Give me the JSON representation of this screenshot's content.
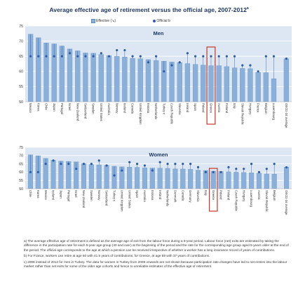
{
  "title": "Average effective age of retirement versus the official age, 2007-2012",
  "title_sup": "a",
  "legend": {
    "effective": "Effective (↘)",
    "official": "Official b"
  },
  "colors": {
    "bar": "#8ab0da",
    "bar_edge": "#5d8cc0",
    "dot": "#2d5ca8",
    "highlight": "#c0392b",
    "panel_bg": "#dde7f3"
  },
  "chart_data": [
    {
      "type": "bar",
      "title": "Men",
      "ylim": [
        50,
        75
      ],
      "yticks": [
        50,
        55,
        60,
        65,
        70,
        75
      ],
      "highlight": "Greece",
      "categories": [
        "Mexico",
        "Korea",
        "Chile",
        "Japan",
        "Portugal",
        "Israel",
        "New Zealand",
        "Switzerland",
        "Sweden",
        "United States",
        "Australia",
        "Norway",
        "Iceland",
        "Canada",
        "United Kingdom",
        "Estonia",
        "Netherlands",
        "Turkey c",
        "Czech Republic",
        "Slovenia",
        "Ireland",
        "Spain",
        "Poland",
        "Greece",
        "Austria",
        "Finland",
        "Italy",
        "Slovak Republic",
        "Hungary",
        "France",
        "Belgium",
        "Luxembourg",
        "OECD-34 average"
      ],
      "series": [
        {
          "name": "Effective",
          "values": [
            72.3,
            71.1,
            69.4,
            69.1,
            68.4,
            67.4,
            66.8,
            66.1,
            66.0,
            65.6,
            65.2,
            65.0,
            64.8,
            64.3,
            64.2,
            63.9,
            63.6,
            63.4,
            63.1,
            62.9,
            62.6,
            62.3,
            62.1,
            61.9,
            61.9,
            61.6,
            61.2,
            61.0,
            60.9,
            59.7,
            59.6,
            57.6,
            64.2
          ]
        },
        {
          "name": "Official",
          "values": [
            65,
            65,
            65,
            65,
            65,
            66,
            65,
            65,
            65,
            66,
            65,
            67,
            67,
            65,
            65,
            63,
            65,
            60,
            62,
            63,
            66,
            65,
            65,
            65,
            65,
            65,
            65,
            62,
            62,
            60,
            65,
            65,
            64.2
          ]
        }
      ]
    },
    {
      "type": "bar",
      "title": "Women",
      "ylim": [
        50,
        75
      ],
      "yticks": [
        50,
        55,
        60,
        65,
        70,
        75
      ],
      "highlight": "Greece",
      "categories": [
        "Chile",
        "Korea",
        "Mexico",
        "Iceland",
        "Japan",
        "Portugal",
        "Israel",
        "New Zealand",
        "Sweden",
        "Norway",
        "Switzerland",
        "Turkey c",
        "United Kingdom",
        "United States",
        "Spain",
        "Australia",
        "Estonia",
        "Ireland",
        "Netherlands",
        "Denmark",
        "Canada",
        "Germany",
        "Slovenia",
        "Italy",
        "Greece",
        "Poland",
        "Finland",
        "Czech Republic",
        "Hungary",
        "Luxembourg",
        "Austria",
        "Slovak Republic",
        "Belgium",
        "OECD-34 average"
      ],
      "series": [
        {
          "name": "Effective",
          "values": [
            70.5,
            69.9,
            68.3,
            67.2,
            66.7,
            66.5,
            66.2,
            65.1,
            64.6,
            64.4,
            64.1,
            63.6,
            63.2,
            63.0,
            62.9,
            62.6,
            62.5,
            62.4,
            62.3,
            62.0,
            61.9,
            61.7,
            61.2,
            61.0,
            60.6,
            60.4,
            60.2,
            60.0,
            59.9,
            59.7,
            59.4,
            58.9,
            58.8,
            63.1
          ]
        },
        {
          "name": "Official",
          "values": [
            60,
            60,
            65,
            67,
            65,
            65,
            62,
            65,
            65,
            67,
            64,
            58,
            61,
            66,
            65,
            64,
            61,
            66,
            65,
            65,
            65,
            65,
            63,
            60,
            60,
            60,
            63,
            62,
            62,
            65,
            60,
            62,
            65,
            62.9
          ]
        }
      ]
    }
  ],
  "notes": [
    "a) The average effective age of retirement is defined as the average age of exit from the labour force during a 5-year period. Labour force (net) exits are estimated by taking the difference in the participation rate for each 5-year age group (40 and over) at the beginning of the period and the rate for the corresponding age group aged 5-years older at the end of the period. The official age corresponds to the age at which a pension can be received irrespective of whether a worker has a long insurance record of years of contributions.",
    "b) For France, workers can retire at age 60 with 41.5 years of contributions; for Greece, at age 59 with 37 years of contributions.",
    "c) 2008 instead of 2012 for men in Turkey. The data for women in Turkey from 2009 onwards are not shown because participation rate changes have led to net entries into the labour market rather than net exits for some of the older age cohorts and hence to unreliable estimates of the effective age of retirement."
  ]
}
